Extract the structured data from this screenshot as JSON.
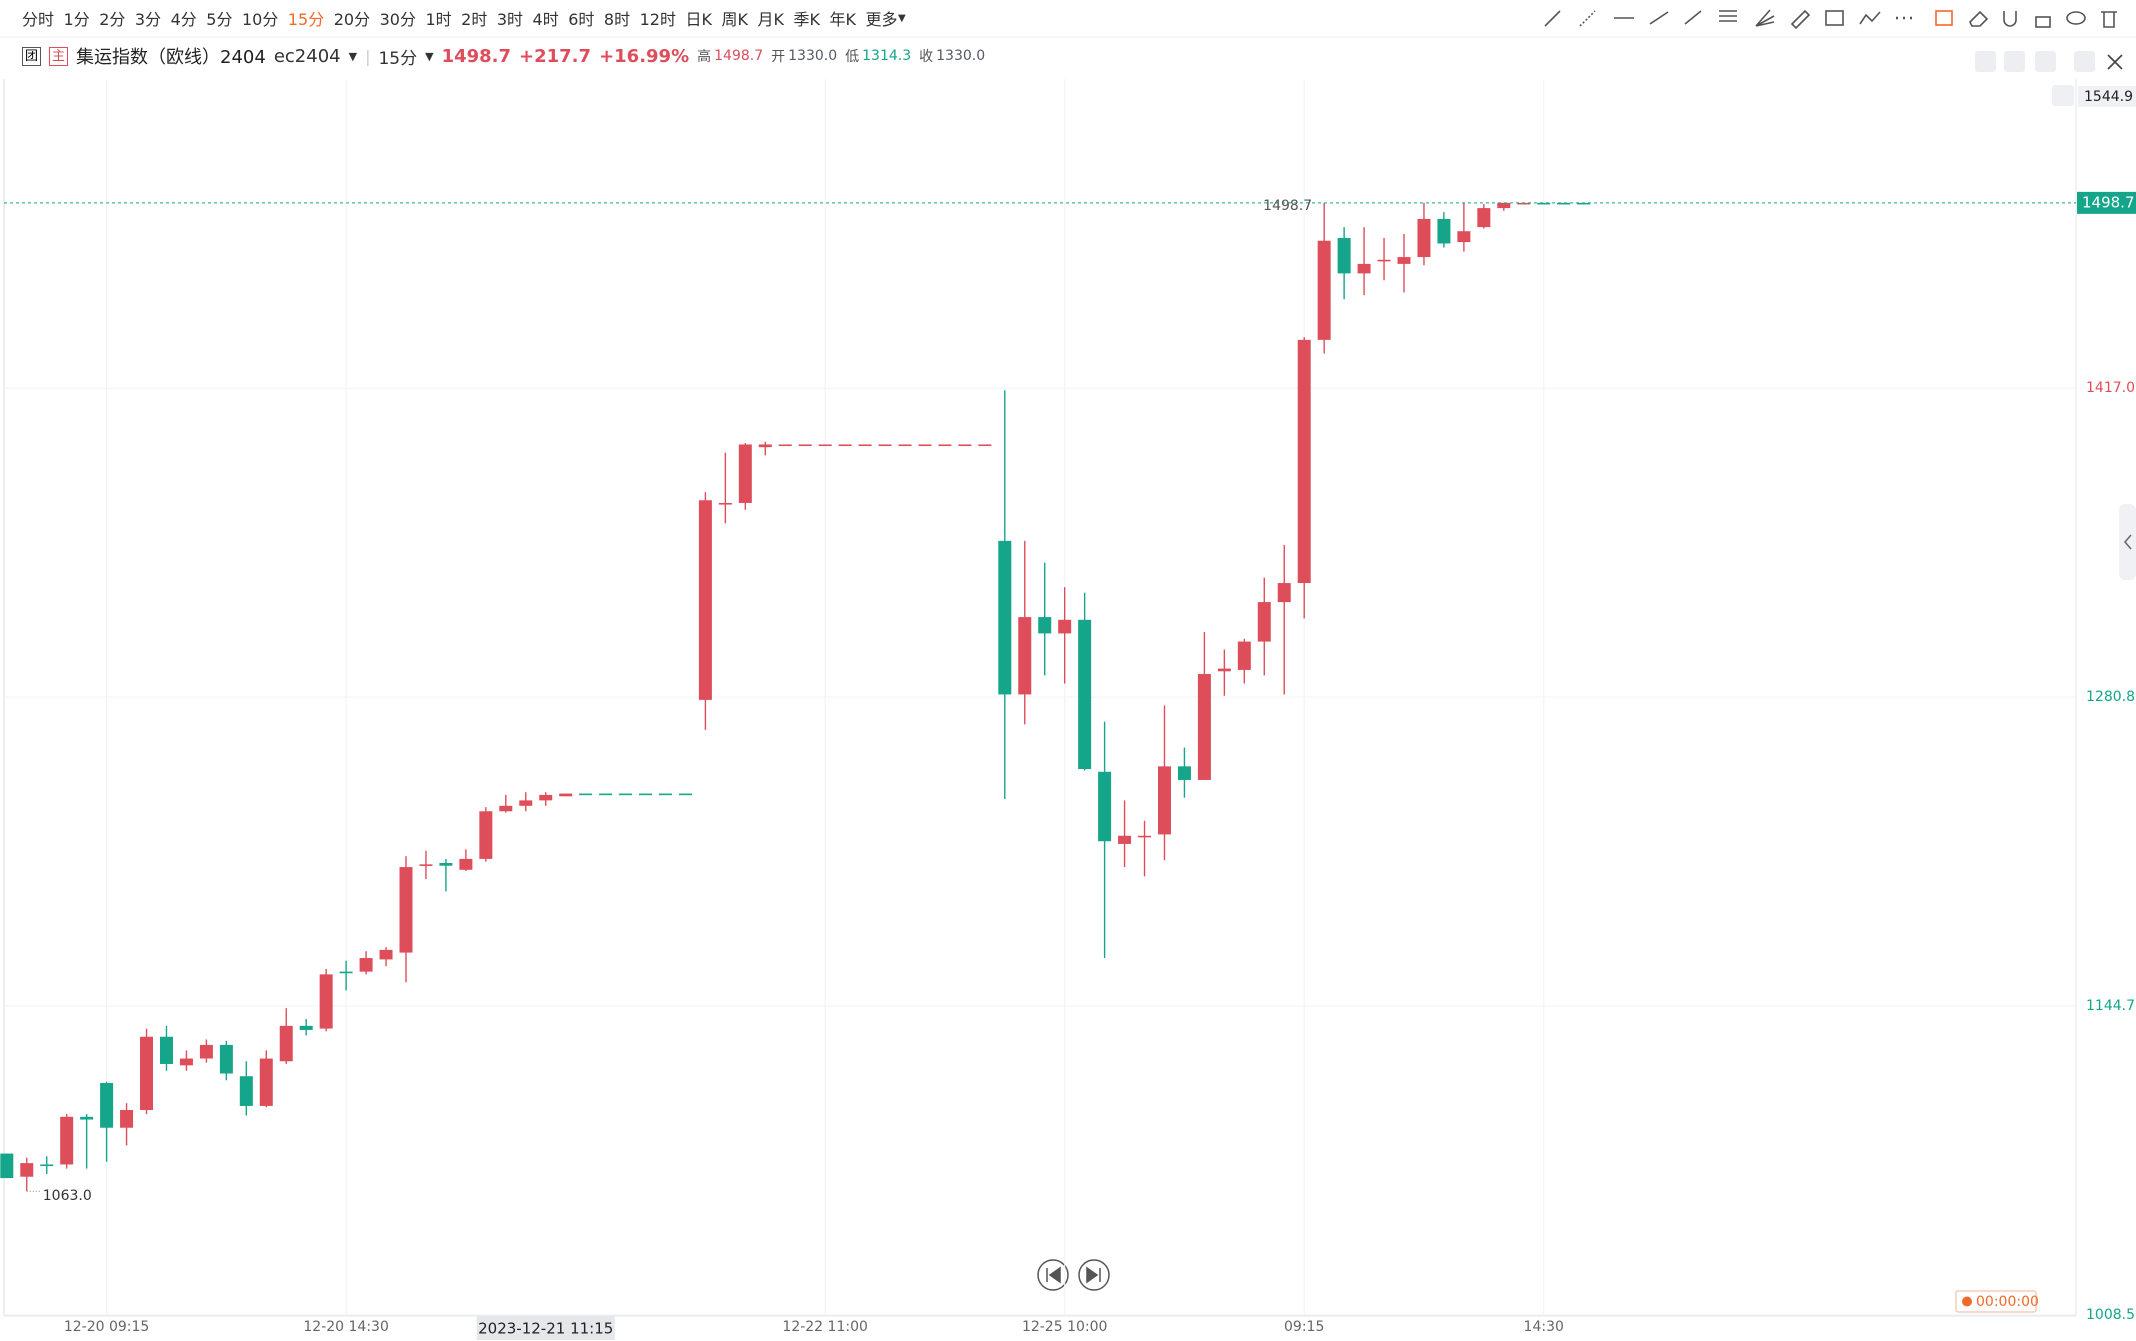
{
  "toolbar": {
    "periods": [
      "分时",
      "1分",
      "2分",
      "3分",
      "4分",
      "5分",
      "10分",
      "15分",
      "20分",
      "30分",
      "1时",
      "2时",
      "3时",
      "4时",
      "6时",
      "8时",
      "12时",
      "日K",
      "周K",
      "月K",
      "季K",
      "年K"
    ],
    "active_period": 7,
    "active_color": "#f0692a",
    "more": "更多"
  },
  "instrument": {
    "badges": [
      "团",
      "主"
    ],
    "name": "集运指数（欧线）2404",
    "code": "ec2404",
    "period": "15分",
    "last": "1498.7",
    "change": "+217.7",
    "change_pct": "+16.99%",
    "ohlc": [
      {
        "label": "高",
        "value": "1498.7",
        "color": "#dd4e5a"
      },
      {
        "label": "开",
        "value": "1330.0",
        "color": "#555a66"
      },
      {
        "label": "低",
        "value": "1314.3",
        "color": "#14a58a"
      },
      {
        "label": "收",
        "value": "1330.0",
        "color": "#555a66"
      }
    ]
  },
  "chart_data": {
    "type": "candlestick",
    "categories": [
      null,
      null,
      null,
      null,
      null,
      "12-20 09:15",
      null,
      null,
      null,
      null,
      null,
      null,
      null,
      null,
      null,
      null,
      null,
      "12-20 14:30",
      null,
      null,
      null,
      null,
      null,
      null,
      null,
      null,
      null,
      null,
      null,
      null,
      null,
      null,
      null,
      null,
      null,
      null,
      null,
      null,
      null,
      null,
      null,
      "12-22 11:00",
      null,
      null,
      null,
      null,
      null,
      null,
      null,
      null,
      null,
      null,
      null,
      "12-25 10:00",
      null,
      null,
      null,
      null,
      null,
      null,
      null,
      null,
      null,
      null,
      null,
      "09:15",
      null,
      null,
      null,
      null,
      null,
      null,
      null,
      null,
      null,
      null,
      null,
      "14:30",
      null,
      null
    ],
    "open": [
      1079.6,
      1069.4,
      1074.8,
      1074.8,
      1095.8,
      1110.7,
      1091.0,
      1098.8,
      1131.1,
      1118.5,
      1121.5,
      1127.5,
      1113.7,
      1100.6,
      1120.3,
      1135.9,
      1134.7,
      1159.8,
      1159.8,
      1165.2,
      1168.2,
      1206.5,
      1207.7,
      1204.7,
      1209.5,
      1230.5,
      1232.9,
      1235.3,
      1237.1,
      1238.3,
      1238.3,
      1238.3,
      1238.3,
      1238.3,
      1238.3,
      1279.6,
      1365.8,
      1366.4,
      1391.0,
      1392.2,
      1392.2,
      1392.2,
      1392.2,
      1392.2,
      1392.2,
      1392.2,
      1392.2,
      1392.2,
      1392.2,
      1392.2,
      1349.7,
      1282.0,
      1316.1,
      1308.9,
      1314.9,
      1247.9,
      1216.1,
      1219.1,
      1220.3,
      1250.3,
      1244.3,
      1292.2,
      1292.8,
      1305.3,
      1322.7,
      1331.1,
      1438.3,
      1483.2,
      1467.6,
      1473.0,
      1471.8,
      1474.8,
      1491.6,
      1481.4,
      1488.0,
      1496.4,
      1498.7,
      1498.7,
      1498.7,
      1498.7
    ],
    "high": [
      1079.6,
      1077.8,
      1078.4,
      1097.0,
      1097.0,
      1111.3,
      1101.8,
      1134.7,
      1135.9,
      1125.1,
      1129.9,
      1129.3,
      1120.3,
      1125.1,
      1143.7,
      1138.9,
      1161.0,
      1164.6,
      1168.8,
      1170.6,
      1210.7,
      1213.1,
      1209.5,
      1213.7,
      1232.3,
      1237.7,
      1238.9,
      1238.9,
      1238.3,
      1238.3,
      1238.3,
      1238.3,
      1238.3,
      1238.3,
      1238.3,
      1371.2,
      1388.6,
      1392.8,
      1393.4,
      1392.2,
      1392.2,
      1392.2,
      1392.2,
      1392.2,
      1392.2,
      1392.2,
      1392.2,
      1392.2,
      1392.2,
      1392.2,
      1416.1,
      1349.7,
      1340.1,
      1329.3,
      1326.9,
      1270.0,
      1235.3,
      1226.3,
      1277.2,
      1258.6,
      1309.5,
      1301.8,
      1306.5,
      1333.5,
      1347.9,
      1439.5,
      1498.7,
      1488.0,
      1488.0,
      1483.2,
      1485.0,
      1498.7,
      1494.6,
      1498.7,
      1498.2,
      1498.7,
      1498.7,
      1498.7,
      1498.7,
      1498.7
    ],
    "low": [
      1068.8,
      1063.0,
      1070.6,
      1073.0,
      1073.0,
      1076.0,
      1083.2,
      1097.0,
      1116.1,
      1116.1,
      1119.7,
      1111.9,
      1096.4,
      1100.0,
      1119.1,
      1131.7,
      1133.5,
      1151.5,
      1158.6,
      1162.2,
      1155.1,
      1200.6,
      1195.2,
      1204.2,
      1208.3,
      1229.9,
      1230.5,
      1232.9,
      1237.1,
      1238.3,
      1238.3,
      1238.3,
      1238.3,
      1238.3,
      1238.3,
      1266.4,
      1357.4,
      1363.4,
      1387.4,
      1392.2,
      1392.2,
      1392.2,
      1392.2,
      1392.2,
      1392.2,
      1392.2,
      1392.2,
      1392.2,
      1392.2,
      1392.2,
      1235.9,
      1268.8,
      1290.4,
      1286.8,
      1248.5,
      1165.8,
      1205.9,
      1201.8,
      1208.9,
      1236.5,
      1244.3,
      1281.4,
      1286.8,
      1290.4,
      1282.0,
      1315.5,
      1432.3,
      1456.2,
      1458.0,
      1464.6,
      1459.2,
      1471.2,
      1479.0,
      1477.2,
      1487.4,
      1495.2,
      1498.7,
      1498.7,
      1498.7,
      1498.7
    ],
    "close": [
      1068.8,
      1075.4,
      1074.2,
      1095.8,
      1094.6,
      1091.0,
      1098.8,
      1131.1,
      1119.1,
      1121.5,
      1127.5,
      1114.9,
      1100.6,
      1121.5,
      1135.9,
      1134.1,
      1158.6,
      1159.2,
      1165.8,
      1169.4,
      1205.9,
      1207.1,
      1206.5,
      1209.5,
      1230.5,
      1232.9,
      1235.3,
      1237.7,
      1238.3,
      1238.3,
      1238.3,
      1238.3,
      1238.3,
      1238.3,
      1238.3,
      1367.6,
      1366.4,
      1392.2,
      1392.2,
      1392.2,
      1392.2,
      1392.2,
      1392.2,
      1392.2,
      1392.2,
      1392.2,
      1392.2,
      1392.2,
      1392.2,
      1392.2,
      1282.0,
      1316.1,
      1308.9,
      1314.9,
      1249.1,
      1217.3,
      1219.7,
      1219.7,
      1250.3,
      1244.3,
      1291.0,
      1293.4,
      1305.3,
      1322.7,
      1331.1,
      1438.3,
      1482.0,
      1467.6,
      1471.8,
      1473.6,
      1474.8,
      1491.6,
      1480.8,
      1486.2,
      1496.4,
      1498.7,
      1498.7,
      1498.7,
      1498.7,
      1498.7
    ],
    "directions": [
      "d",
      "u",
      "d",
      "u",
      "d",
      "d",
      "u",
      "u",
      "d",
      "u",
      "u",
      "d",
      "d",
      "u",
      "u",
      "d",
      "u",
      "d",
      "u",
      "u",
      "u",
      "u",
      "d",
      "u",
      "u",
      "u",
      "u",
      "u",
      "u",
      "d",
      "d",
      "d",
      "d",
      "d",
      "d",
      "u",
      "u",
      "u",
      "u",
      "u",
      "u",
      "u",
      "u",
      "u",
      "u",
      "u",
      "u",
      "u",
      "u",
      "u",
      "d",
      "u",
      "d",
      "u",
      "d",
      "d",
      "u",
      "u",
      "u",
      "d",
      "u",
      "u",
      "u",
      "u",
      "u",
      "u",
      "u",
      "d",
      "u",
      "u",
      "u",
      "u",
      "d",
      "u",
      "u",
      "u",
      "u",
      "d",
      "d",
      "d"
    ],
    "palette": {
      "u": "#dd4e5a",
      "d": "#14a58a"
    },
    "ylim": [
      1008.0,
      1553.3
    ],
    "yticks": [
      1008.5,
      1144.7,
      1280.8,
      {
        "value": 1417.0,
        "label": "1417.0"
      }
    ],
    "ytick_colors": [
      "#14a58a",
      "#14a58a",
      "#14a58a",
      "#dd4e5a"
    ],
    "grid": true,
    "crosshair_label": "2023-12-21 11:15",
    "cursor_value": 1544.9,
    "last_price": 1498.7,
    "max_label": {
      "value": 1498.7,
      "label": "1498.7"
    },
    "min_label": {
      "value": 1063.0,
      "label": "1063.0"
    },
    "timer": "00:00:00"
  }
}
